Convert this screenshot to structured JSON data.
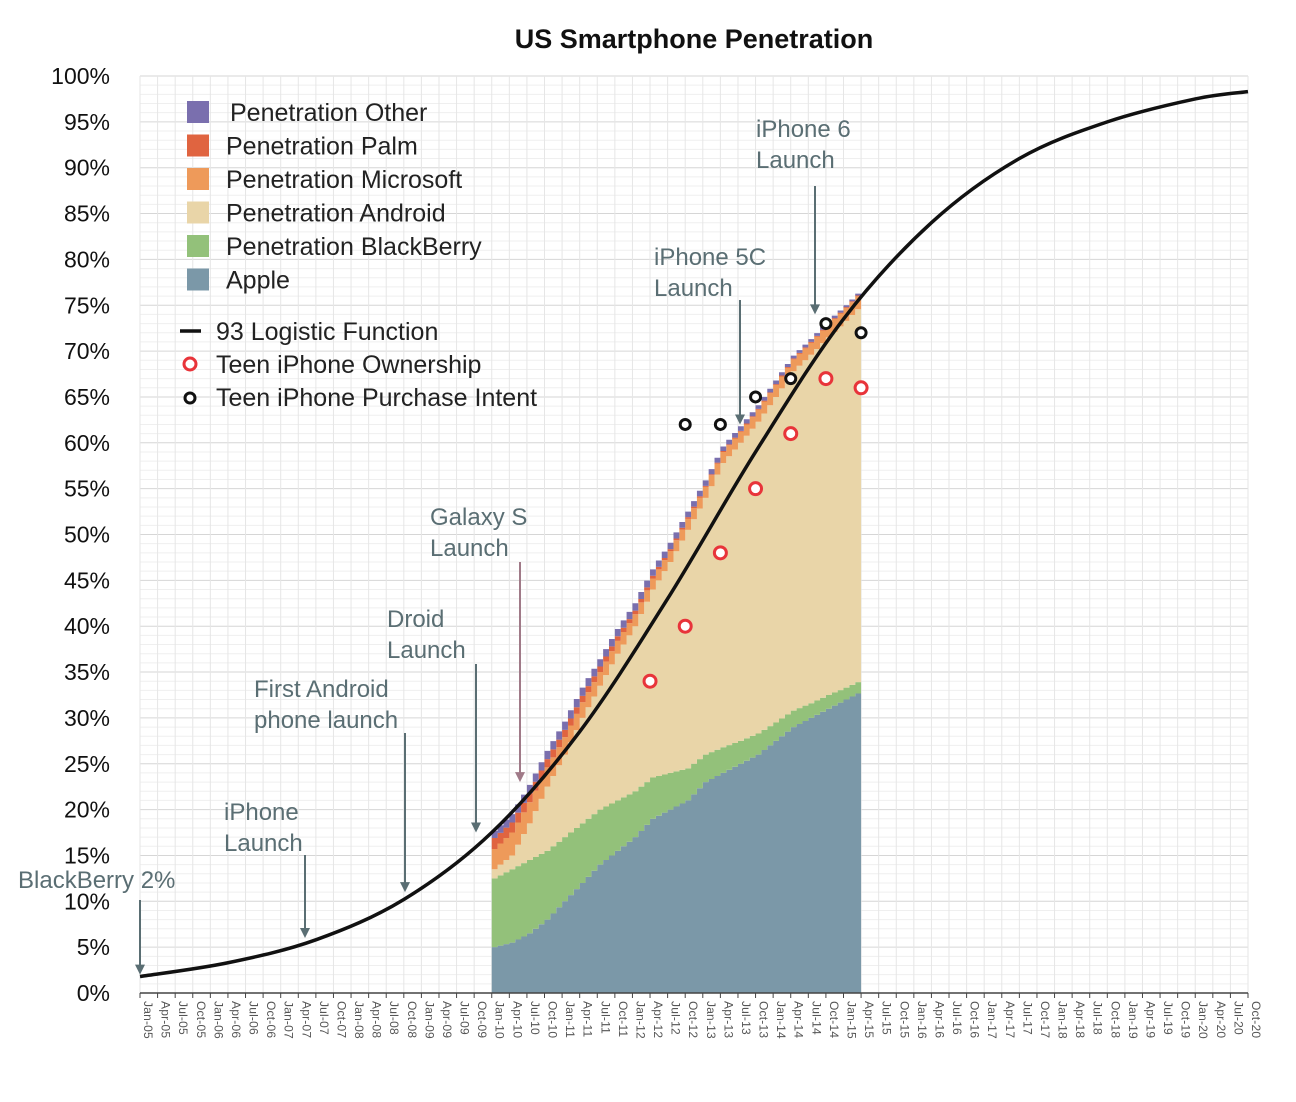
{
  "chart_data": {
    "type": "area",
    "title": "US Smartphone Penetration",
    "xlabel": "",
    "ylabel": "",
    "ylim": [
      0,
      100
    ],
    "y_ticks": [
      "0%",
      "5%",
      "10%",
      "15%",
      "20%",
      "25%",
      "30%",
      "35%",
      "40%",
      "45%",
      "50%",
      "55%",
      "60%",
      "65%",
      "70%",
      "75%",
      "80%",
      "85%",
      "90%",
      "95%",
      "100%"
    ],
    "x_ticks": [
      "Jan-05",
      "Apr-05",
      "Jul-05",
      "Oct-05",
      "Jan-06",
      "Apr-06",
      "Jul-06",
      "Oct-06",
      "Jan-07",
      "Apr-07",
      "Jul-07",
      "Oct-07",
      "Jan-08",
      "Apr-08",
      "Jul-08",
      "Oct-08",
      "Jan-09",
      "Apr-09",
      "Jul-09",
      "Oct-09",
      "Jan-10",
      "Apr-10",
      "Jul-10",
      "Oct-10",
      "Jan-11",
      "Apr-11",
      "Jul-11",
      "Oct-11",
      "Jan-12",
      "Apr-12",
      "Jul-12",
      "Oct-12",
      "Jan-13",
      "Apr-13",
      "Jul-13",
      "Oct-13",
      "Jan-14",
      "Apr-14",
      "Jul-14",
      "Oct-14",
      "Jan-15",
      "Apr-15",
      "Jul-15",
      "Oct-15",
      "Jan-16",
      "Apr-16",
      "Jul-16",
      "Oct-16",
      "Jan-17",
      "Apr-17",
      "Jul-17",
      "Oct-17",
      "Jan-18",
      "Apr-18",
      "Jul-18",
      "Oct-18",
      "Jan-19",
      "Apr-19",
      "Jul-19",
      "Oct-19",
      "Jan-20",
      "Apr-20",
      "Jul-20",
      "Oct-20"
    ],
    "grid": true,
    "legend_position": "top-left",
    "stack_x": [
      "Jan-10",
      "Apr-10",
      "Jul-10",
      "Oct-10",
      "Jan-11",
      "Apr-11",
      "Jul-11",
      "Oct-11",
      "Jan-12",
      "Apr-12",
      "Jul-12",
      "Oct-12",
      "Jan-13",
      "Apr-13",
      "Jul-13",
      "Oct-13",
      "Jan-14",
      "Apr-14",
      "Jul-14",
      "Oct-14",
      "Jan-15",
      "Apr-15"
    ],
    "stack_series": [
      {
        "name": "Apple",
        "color": "#7b98a8",
        "values": [
          5,
          5.5,
          6.5,
          8,
          10,
          12,
          14,
          15.5,
          17,
          19,
          20,
          21,
          23,
          24,
          25,
          26,
          27.5,
          29,
          30,
          31,
          32,
          33
        ]
      },
      {
        "name": "Penetration BlackBerry",
        "color": "#93c17a",
        "values": [
          7.5,
          8,
          8,
          7.5,
          7,
          6.5,
          6,
          5.5,
          5,
          4.5,
          4,
          3.5,
          3,
          2.8,
          2.5,
          2.3,
          2,
          1.8,
          1.6,
          1.5,
          1.3,
          1.2
        ]
      },
      {
        "name": "Penetration Android",
        "color": "#e9d5a8",
        "values": [
          1,
          1.5,
          4,
          7,
          9,
          11.5,
          13.5,
          16,
          18,
          20.5,
          23,
          26,
          28,
          31,
          32.5,
          34,
          35.5,
          37,
          38,
          39,
          40,
          41
        ]
      },
      {
        "name": "Penetration Microsoft",
        "color": "#ee9a5a",
        "values": [
          2.2,
          2.5,
          2.3,
          2.1,
          1.9,
          1.7,
          1.5,
          1.4,
          1.3,
          1.2,
          1.2,
          1.2,
          1.2,
          1.2,
          1.2,
          1.3,
          1.3,
          1.3,
          1.3,
          1.4,
          1.4,
          1.4
        ]
      },
      {
        "name": "Penetration Palm",
        "color": "#e06440",
        "values": [
          1.2,
          1.1,
          1,
          0.9,
          0.8,
          0.7,
          0.6,
          0.5,
          0.4,
          0.3,
          0.2,
          0.2,
          0.1,
          0.1,
          0.1,
          0.1,
          0.1,
          0.1,
          0.1,
          0.1,
          0.1,
          0.1
        ]
      },
      {
        "name": "Penetration Other",
        "color": "#7a6fae",
        "values": [
          0.8,
          0.9,
          0.9,
          0.9,
          0.9,
          0.9,
          0.8,
          0.8,
          0.8,
          0.7,
          0.7,
          0.6,
          0.6,
          0.5,
          0.5,
          0.4,
          0.4,
          0.3,
          0.3,
          0.3,
          0.2,
          0.2
        ]
      }
    ],
    "logistic": {
      "name": "93 Logistic Function",
      "color": "#111111",
      "x": [
        "Jan-05",
        "Apr-06",
        "Jul-07",
        "Oct-08",
        "Jan-10",
        "Apr-11",
        "Jul-12",
        "Oct-13",
        "Jan-15",
        "Apr-16",
        "Jul-17",
        "Oct-18",
        "Jan-20",
        "Oct-20"
      ],
      "values": [
        1.8,
        3.3,
        5.8,
        10.2,
        17.5,
        28.5,
        43,
        59,
        73.5,
        84,
        91,
        95,
        97.5,
        98.3
      ]
    },
    "teen_ownership": {
      "name": "Teen iPhone Ownership",
      "color": "#e8343a",
      "x": [
        "Apr-12",
        "Oct-12",
        "Apr-13",
        "Oct-13",
        "Apr-14",
        "Oct-14",
        "Apr-15"
      ],
      "values": [
        34,
        40,
        48,
        55,
        61,
        67,
        66
      ]
    },
    "teen_intent": {
      "name": "Teen iPhone Purchase Intent",
      "color": "#111111",
      "x": [
        "Oct-12",
        "Apr-13",
        "Oct-13",
        "Apr-14",
        "Oct-14",
        "Apr-15"
      ],
      "values": [
        62,
        62,
        65,
        67,
        73,
        72
      ]
    },
    "annotations": [
      {
        "text": [
          "BlackBerry 2%"
        ],
        "x": "Jan-05",
        "y": 2
      },
      {
        "text": [
          "iPhone",
          "Launch"
        ],
        "x": "Jul-07",
        "y": 6
      },
      {
        "text": [
          "First Android",
          "phone launch"
        ],
        "x": "Oct-08",
        "y": 11
      },
      {
        "text": [
          "Droid",
          "Launch"
        ],
        "x": "Oct-09",
        "y": 17.5
      },
      {
        "text": [
          "Galaxy S",
          "Launch"
        ],
        "x": "Jul-10",
        "y": 23
      },
      {
        "text": [
          "iPhone 5C",
          "Launch"
        ],
        "x": "Sep-13",
        "y": 62
      },
      {
        "text": [
          "iPhone 6",
          "Launch"
        ],
        "x": "Sep-14",
        "y": 74
      }
    ]
  }
}
